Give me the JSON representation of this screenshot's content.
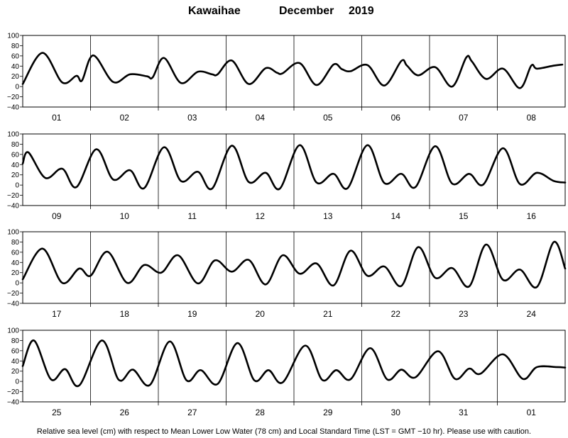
{
  "title": {
    "station": "Kawaihae",
    "month": "December",
    "year": "2019"
  },
  "footer": "Relative sea level (cm) with respect to Mean Lower Low Water (78 cm) and Local Standard Time (LST = GMT −10 hr). Please use with caution.",
  "chart_data": [
    {
      "type": "line",
      "ylim": [
        -40,
        100
      ],
      "yticks": [
        "100",
        "80",
        "60",
        "40",
        "20",
        "0",
        "−20",
        "−40"
      ],
      "yticks_values": [
        100,
        80,
        60,
        40,
        20,
        0,
        -20,
        -40
      ],
      "grid": "vertical day lines",
      "days": [
        "01",
        "02",
        "03",
        "04",
        "05",
        "06",
        "07",
        "08"
      ],
      "x_hours": [
        0,
        7,
        14,
        19,
        21,
        25,
        32,
        38,
        44,
        46,
        50,
        56,
        62,
        67,
        69,
        74,
        80,
        86,
        90,
        92,
        98,
        104,
        110,
        113,
        116,
        122,
        128,
        134,
        136,
        140,
        146,
        152,
        157,
        159,
        164,
        170,
        176,
        180,
        182,
        188,
        191
      ],
      "values": [
        5,
        66,
        8,
        21,
        12,
        61,
        9,
        24,
        20,
        18,
        56,
        7,
        29,
        24,
        24,
        51,
        5,
        36,
        27,
        26,
        46,
        3,
        43,
        34,
        30,
        42,
        2,
        50,
        41,
        22,
        38,
        0,
        57,
        49,
        15,
        35,
        -3,
        41,
        35,
        41,
        43
      ]
    },
    {
      "type": "line",
      "ylim": [
        -40,
        100
      ],
      "yticks": [
        "100",
        "80",
        "60",
        "40",
        "20",
        "0",
        "−20",
        "−40"
      ],
      "yticks_values": [
        100,
        80,
        60,
        40,
        20,
        0,
        -20,
        -40
      ],
      "grid": "vertical day lines",
      "days": [
        "09",
        "10",
        "11",
        "12",
        "13",
        "14",
        "15",
        "16"
      ],
      "x_hours": [
        0,
        2,
        8,
        14,
        19,
        26,
        32,
        38,
        43,
        50,
        56,
        62,
        67,
        74,
        80,
        86,
        91,
        98,
        104,
        110,
        115,
        122,
        128,
        134,
        139,
        146,
        152,
        158,
        163,
        170,
        176,
        182,
        188,
        192
      ],
      "values": [
        42,
        64,
        14,
        32,
        -4,
        70,
        11,
        29,
        -6,
        74,
        8,
        26,
        -7,
        77,
        6,
        24,
        -7,
        78,
        5,
        22,
        -6,
        78,
        4,
        22,
        -4,
        76,
        3,
        22,
        1,
        72,
        2,
        24,
        8,
        5
      ]
    },
    {
      "type": "line",
      "ylim": [
        -40,
        100
      ],
      "yticks": [
        "100",
        "80",
        "60",
        "40",
        "20",
        "0",
        "−20",
        "−40"
      ],
      "yticks_values": [
        100,
        80,
        60,
        40,
        20,
        0,
        -20,
        -40
      ],
      "grid": "vertical day lines",
      "days": [
        "17",
        "18",
        "19",
        "20",
        "21",
        "22",
        "23",
        "24"
      ],
      "x_hours": [
        0,
        7,
        14,
        20,
        24,
        30,
        37,
        43,
        49,
        55,
        62,
        68,
        74,
        80,
        86,
        92,
        98,
        104,
        110,
        116,
        122,
        128,
        134,
        140,
        146,
        152,
        158,
        164,
        170,
        176,
        182,
        188,
        192
      ],
      "values": [
        7,
        67,
        0,
        28,
        14,
        61,
        0,
        35,
        20,
        54,
        -1,
        44,
        22,
        45,
        -3,
        54,
        18,
        38,
        -5,
        63,
        14,
        32,
        -6,
        70,
        10,
        29,
        -7,
        75,
        6,
        26,
        -8,
        80,
        28
      ]
    },
    {
      "type": "line",
      "ylim": [
        -40,
        100
      ],
      "yticks": [
        "100",
        "80",
        "60",
        "40",
        "20",
        "0",
        "−20",
        "−40"
      ],
      "yticks_values": [
        100,
        80,
        60,
        40,
        20,
        0,
        -20,
        -40
      ],
      "grid": "vertical day lines",
      "days": [
        "25",
        "26",
        "27",
        "28",
        "29",
        "30",
        "31",
        "01"
      ],
      "x_hours": [
        0,
        4,
        10,
        15,
        20,
        28,
        34,
        39,
        45,
        52,
        58,
        63,
        69,
        76,
        82,
        87,
        92,
        100,
        106,
        111,
        116,
        123,
        129,
        134,
        139,
        147,
        153,
        158,
        162,
        170,
        177,
        182,
        189,
        192
      ],
      "values": [
        30,
        80,
        4,
        24,
        -8,
        80,
        3,
        23,
        -7,
        78,
        2,
        22,
        -5,
        75,
        2,
        22,
        -2,
        70,
        3,
        22,
        4,
        65,
        4,
        23,
        8,
        59,
        5,
        25,
        15,
        53,
        5,
        28,
        28,
        27
      ]
    }
  ]
}
